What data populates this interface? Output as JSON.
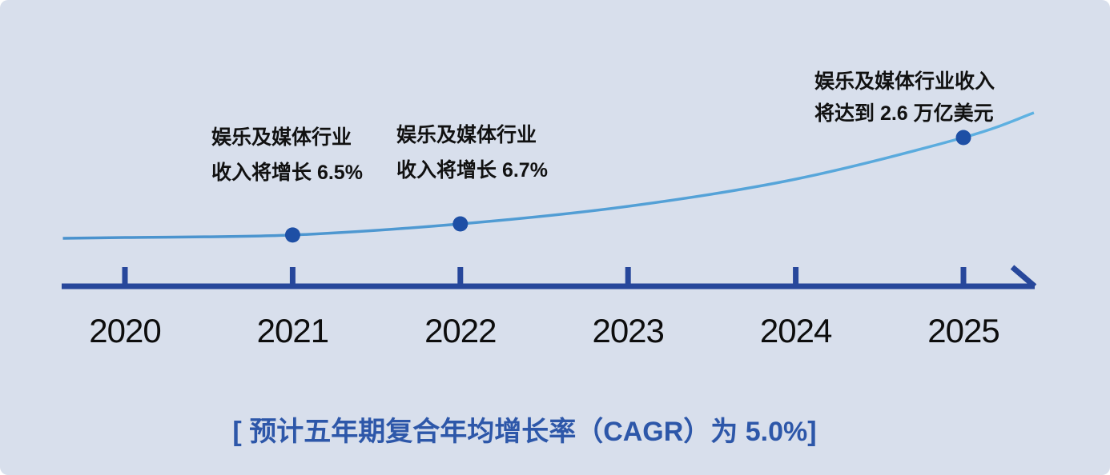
{
  "colors": {
    "card_background": "#d8dfec",
    "axis_dark_blue": "#27479b",
    "marker_dark_blue": "#1e4fa5",
    "curve_blue_start": "#4a92cd",
    "curve_blue_end": "#5fb2e2",
    "caption_blue": "#2d57a9",
    "text_black": "#111111"
  },
  "chart_data": {
    "type": "line",
    "title": "",
    "xlabel": "",
    "ylabel": "",
    "grid": false,
    "legend": null,
    "x_tick_labels": [
      "2020",
      "2021",
      "2022",
      "2023",
      "2024",
      "2025"
    ],
    "caption": "[ 预计五年期复合年均增长率（CAGR）为 5.0%]",
    "annotations": [
      {
        "year": "2021",
        "lines": [
          "娱乐及媒体行业",
          "收入将增长 6.5%"
        ]
      },
      {
        "year": "2022",
        "lines": [
          "娱乐及媒体行业",
          "收入将增长 6.7%"
        ]
      },
      {
        "year": "2025",
        "lines": [
          "娱乐及媒体行业收入",
          "将达到 2.6 万亿美元"
        ]
      }
    ],
    "facts": {
      "revenue_growth_2021": "6.5%",
      "revenue_growth_2022": "6.7%",
      "revenue_2025": "2.6 万亿美元",
      "five_year_cagr": "5.0%"
    },
    "markers": [
      {
        "year_index": 1,
        "growth_fraction": 0.025
      },
      {
        "year_index": 2,
        "growth_fraction": 0.136
      },
      {
        "year_index": 5,
        "growth_fraction": 1.0
      }
    ],
    "curve_profile": [
      {
        "year_index": -0.37,
        "growth_fraction": -0.008
      },
      {
        "year_index": 0,
        "growth_fraction": 0.0
      },
      {
        "year_index": 1,
        "growth_fraction": 0.025
      },
      {
        "year_index": 2,
        "growth_fraction": 0.136
      },
      {
        "year_index": 3,
        "growth_fraction": 0.312
      },
      {
        "year_index": 4,
        "growth_fraction": 0.584
      },
      {
        "year_index": 5,
        "growth_fraction": 1.0
      },
      {
        "year_index": 5.42,
        "growth_fraction": 1.248
      }
    ]
  }
}
